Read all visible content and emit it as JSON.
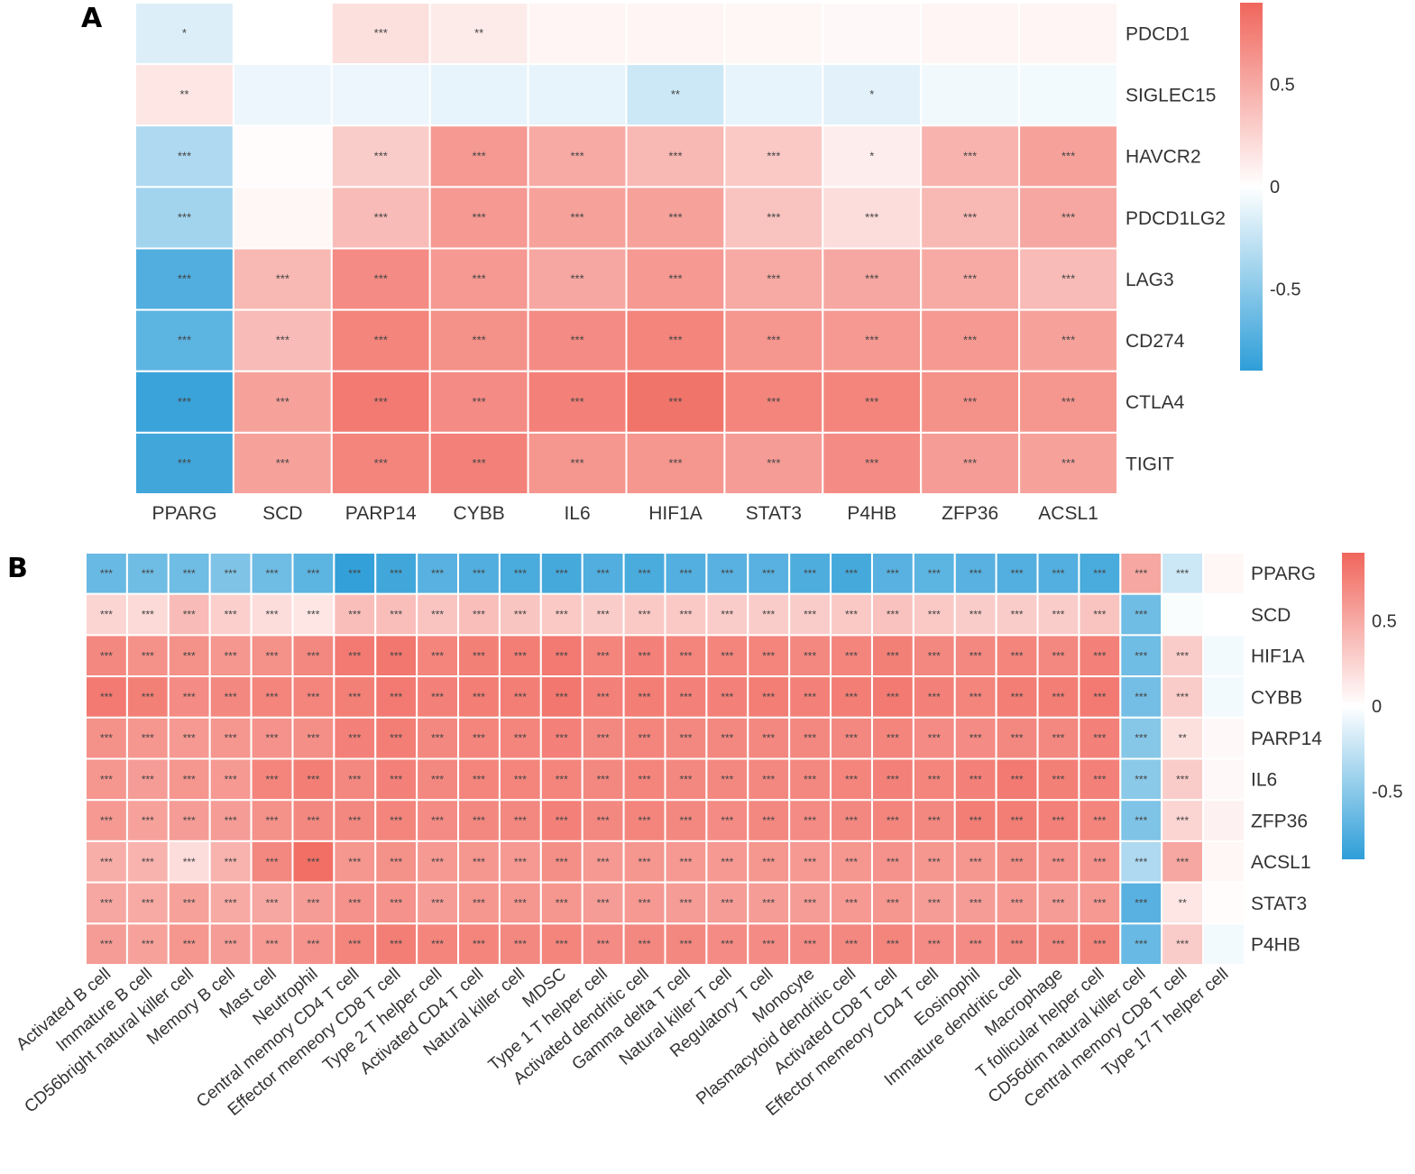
{
  "chart_data": [
    {
      "panel": "A",
      "type": "heatmap",
      "rows": [
        "PDCD1",
        "SIGLEC15",
        "HAVCR2",
        "PDCD1LG2",
        "LAG3",
        "CD274",
        "CTLA4",
        "TIGIT"
      ],
      "columns": [
        "PPARG",
        "SCD",
        "PARP14",
        "CYBB",
        "IL6",
        "HIF1A",
        "STAT3",
        "P4HB",
        "ZFP36",
        "ACSL1"
      ],
      "values": [
        [
          -0.15,
          0.0,
          0.18,
          0.12,
          0.06,
          0.06,
          0.05,
          0.04,
          0.06,
          0.06
        ],
        [
          0.15,
          -0.08,
          -0.08,
          -0.1,
          -0.1,
          -0.22,
          -0.1,
          -0.12,
          -0.06,
          -0.05
        ],
        [
          -0.35,
          0.02,
          0.3,
          0.6,
          0.5,
          0.42,
          0.32,
          0.1,
          0.45,
          0.55
        ],
        [
          -0.4,
          0.05,
          0.4,
          0.6,
          0.55,
          0.55,
          0.35,
          0.2,
          0.42,
          0.52
        ],
        [
          -0.75,
          0.42,
          0.68,
          0.6,
          0.52,
          0.6,
          0.5,
          0.52,
          0.5,
          0.4
        ],
        [
          -0.7,
          0.4,
          0.72,
          0.65,
          0.68,
          0.72,
          0.62,
          0.6,
          0.6,
          0.55
        ],
        [
          -0.85,
          0.55,
          0.78,
          0.68,
          0.74,
          0.82,
          0.72,
          0.72,
          0.65,
          0.62
        ],
        [
          -0.82,
          0.55,
          0.72,
          0.74,
          0.62,
          0.62,
          0.58,
          0.68,
          0.58,
          0.55
        ]
      ],
      "significance": [
        [
          "*",
          "",
          "***",
          "**",
          "",
          "",
          "",
          "",
          "",
          ""
        ],
        [
          "**",
          "",
          "",
          "",
          "",
          "**",
          "",
          "*",
          "",
          ""
        ],
        [
          "***",
          "",
          "***",
          "***",
          "***",
          "***",
          "***",
          "*",
          "***",
          "***"
        ],
        [
          "***",
          "",
          "***",
          "***",
          "***",
          "***",
          "***",
          "***",
          "***",
          "***"
        ],
        [
          "***",
          "***",
          "***",
          "***",
          "***",
          "***",
          "***",
          "***",
          "***",
          "***"
        ],
        [
          "***",
          "***",
          "***",
          "***",
          "***",
          "***",
          "***",
          "***",
          "***",
          "***"
        ],
        [
          "***",
          "***",
          "***",
          "***",
          "***",
          "***",
          "***",
          "***",
          "***",
          "***"
        ],
        [
          "***",
          "***",
          "***",
          "***",
          "***",
          "***",
          "***",
          "***",
          "***",
          "***"
        ]
      ],
      "colorbar": {
        "ticks": [
          0.5,
          0,
          -0.5
        ],
        "tick_labels": [
          "0.5",
          "0",
          "-0.5"
        ],
        "range": [
          -0.9,
          0.9
        ],
        "low_color": "#2e9ed8",
        "mid_color": "#ffffff",
        "high_color": "#f0665c"
      }
    },
    {
      "panel": "B",
      "type": "heatmap",
      "rows": [
        "PPARG",
        "SCD",
        "HIF1A",
        "CYBB",
        "PARP14",
        "IL6",
        "ZFP36",
        "ACSL1",
        "STAT3",
        "P4HB"
      ],
      "columns": [
        "Activated B cell",
        "Immature  B cell",
        "CD56bright natural killer cell",
        "Memory B cell",
        "Mast cell",
        "Neutrophil",
        "Central memory CD4 T cell",
        "Effector memeory CD8 T cell",
        "Type 2 T helper cell",
        "Activated CD4 T cell",
        "Natural killer cell",
        "MDSC",
        "Type 1 T helper cell",
        "Activated dendritic cell",
        "Gamma delta T cell",
        "Natural killer T cell",
        "Regulatory T cell",
        "Monocyte",
        "Plasmacytoid dendritic cell",
        "Activated CD8 T cell",
        "Effector memeory CD4 T cell",
        "Eosinophil",
        "Immature dendritic cell",
        "Macrophage",
        "T follicular helper cell",
        "CD56dim natural killer cell",
        "Central memory CD8 T cell",
        "Type 17 T helper cell"
      ],
      "values": [
        [
          -0.65,
          -0.62,
          -0.62,
          -0.55,
          -0.62,
          -0.7,
          -0.88,
          -0.82,
          -0.72,
          -0.75,
          -0.78,
          -0.8,
          -0.75,
          -0.78,
          -0.74,
          -0.72,
          -0.72,
          -0.76,
          -0.8,
          -0.72,
          -0.7,
          -0.72,
          -0.74,
          -0.74,
          -0.78,
          0.52,
          -0.22,
          0.05
        ],
        [
          0.25,
          0.22,
          0.4,
          0.28,
          0.2,
          0.15,
          0.38,
          0.38,
          0.35,
          0.38,
          0.34,
          0.32,
          0.3,
          0.32,
          0.32,
          0.3,
          0.3,
          0.3,
          0.32,
          0.36,
          0.32,
          0.3,
          0.3,
          0.3,
          0.35,
          -0.62,
          -0.02,
          0.0
        ],
        [
          0.7,
          0.65,
          0.65,
          0.62,
          0.65,
          0.7,
          0.78,
          0.8,
          0.72,
          0.75,
          0.76,
          0.78,
          0.72,
          0.74,
          0.72,
          0.72,
          0.72,
          0.7,
          0.72,
          0.75,
          0.7,
          0.7,
          0.72,
          0.7,
          0.74,
          -0.62,
          0.3,
          -0.05
        ],
        [
          0.78,
          0.75,
          0.68,
          0.7,
          0.72,
          0.72,
          0.75,
          0.78,
          0.74,
          0.76,
          0.76,
          0.8,
          0.74,
          0.76,
          0.74,
          0.74,
          0.76,
          0.74,
          0.76,
          0.78,
          0.74,
          0.72,
          0.76,
          0.76,
          0.78,
          -0.6,
          0.3,
          -0.05
        ],
        [
          0.65,
          0.62,
          0.6,
          0.62,
          0.64,
          0.66,
          0.74,
          0.76,
          0.7,
          0.72,
          0.72,
          0.74,
          0.7,
          0.72,
          0.7,
          0.7,
          0.7,
          0.7,
          0.7,
          0.72,
          0.68,
          0.68,
          0.7,
          0.7,
          0.74,
          -0.52,
          0.18,
          0.04
        ],
        [
          0.62,
          0.58,
          0.62,
          0.6,
          0.72,
          0.76,
          0.7,
          0.74,
          0.7,
          0.72,
          0.72,
          0.72,
          0.7,
          0.72,
          0.7,
          0.7,
          0.7,
          0.7,
          0.72,
          0.74,
          0.72,
          0.74,
          0.78,
          0.75,
          0.74,
          -0.5,
          0.3,
          0.04
        ],
        [
          0.6,
          0.55,
          0.58,
          0.58,
          0.65,
          0.7,
          0.7,
          0.72,
          0.68,
          0.7,
          0.7,
          0.74,
          0.7,
          0.72,
          0.7,
          0.68,
          0.7,
          0.68,
          0.7,
          0.72,
          0.7,
          0.76,
          0.76,
          0.74,
          0.72,
          -0.55,
          0.25,
          0.08
        ],
        [
          0.48,
          0.45,
          0.2,
          0.45,
          0.7,
          0.85,
          0.62,
          0.65,
          0.6,
          0.62,
          0.6,
          0.66,
          0.6,
          0.62,
          0.6,
          0.6,
          0.62,
          0.6,
          0.62,
          0.64,
          0.62,
          0.62,
          0.66,
          0.64,
          0.64,
          -0.35,
          0.52,
          0.05
        ],
        [
          0.52,
          0.5,
          0.55,
          0.5,
          0.52,
          0.58,
          0.64,
          0.64,
          0.58,
          0.62,
          0.62,
          0.62,
          0.58,
          0.6,
          0.58,
          0.58,
          0.58,
          0.58,
          0.6,
          0.62,
          0.58,
          0.58,
          0.6,
          0.58,
          0.6,
          -0.72,
          0.15,
          0.02
        ],
        [
          0.58,
          0.55,
          0.62,
          0.58,
          0.6,
          0.64,
          0.72,
          0.76,
          0.72,
          0.72,
          0.7,
          0.72,
          0.68,
          0.7,
          0.7,
          0.68,
          0.68,
          0.68,
          0.7,
          0.72,
          0.68,
          0.68,
          0.7,
          0.7,
          0.72,
          -0.65,
          0.3,
          -0.05
        ]
      ],
      "significance": [
        [
          "***",
          "***",
          "***",
          "***",
          "***",
          "***",
          "***",
          "***",
          "***",
          "***",
          "***",
          "***",
          "***",
          "***",
          "***",
          "***",
          "***",
          "***",
          "***",
          "***",
          "***",
          "***",
          "***",
          "***",
          "***",
          "***",
          "***",
          ""
        ],
        [
          "***",
          "***",
          "***",
          "***",
          "***",
          "***",
          "***",
          "***",
          "***",
          "***",
          "***",
          "***",
          "***",
          "***",
          "***",
          "***",
          "***",
          "***",
          "***",
          "***",
          "***",
          "***",
          "***",
          "***",
          "***",
          "***",
          "",
          ""
        ],
        [
          "***",
          "***",
          "***",
          "***",
          "***",
          "***",
          "***",
          "***",
          "***",
          "***",
          "***",
          "***",
          "***",
          "***",
          "***",
          "***",
          "***",
          "***",
          "***",
          "***",
          "***",
          "***",
          "***",
          "***",
          "***",
          "***",
          "***",
          ""
        ],
        [
          "***",
          "***",
          "***",
          "***",
          "***",
          "***",
          "***",
          "***",
          "***",
          "***",
          "***",
          "***",
          "***",
          "***",
          "***",
          "***",
          "***",
          "***",
          "***",
          "***",
          "***",
          "***",
          "***",
          "***",
          "***",
          "***",
          "***",
          ""
        ],
        [
          "***",
          "***",
          "***",
          "***",
          "***",
          "***",
          "***",
          "***",
          "***",
          "***",
          "***",
          "***",
          "***",
          "***",
          "***",
          "***",
          "***",
          "***",
          "***",
          "***",
          "***",
          "***",
          "***",
          "***",
          "***",
          "***",
          "**",
          ""
        ],
        [
          "***",
          "***",
          "***",
          "***",
          "***",
          "***",
          "***",
          "***",
          "***",
          "***",
          "***",
          "***",
          "***",
          "***",
          "***",
          "***",
          "***",
          "***",
          "***",
          "***",
          "***",
          "***",
          "***",
          "***",
          "***",
          "***",
          "***",
          ""
        ],
        [
          "***",
          "***",
          "***",
          "***",
          "***",
          "***",
          "***",
          "***",
          "***",
          "***",
          "***",
          "***",
          "***",
          "***",
          "***",
          "***",
          "***",
          "***",
          "***",
          "***",
          "***",
          "***",
          "***",
          "***",
          "***",
          "***",
          "***",
          ""
        ],
        [
          "***",
          "***",
          "***",
          "***",
          "***",
          "***",
          "***",
          "***",
          "***",
          "***",
          "***",
          "***",
          "***",
          "***",
          "***",
          "***",
          "***",
          "***",
          "***",
          "***",
          "***",
          "***",
          "***",
          "***",
          "***",
          "***",
          "***",
          ""
        ],
        [
          "***",
          "***",
          "***",
          "***",
          "***",
          "***",
          "***",
          "***",
          "***",
          "***",
          "***",
          "***",
          "***",
          "***",
          "***",
          "***",
          "***",
          "***",
          "***",
          "***",
          "***",
          "***",
          "***",
          "***",
          "***",
          "***",
          "**",
          ""
        ],
        [
          "***",
          "***",
          "***",
          "***",
          "***",
          "***",
          "***",
          "***",
          "***",
          "***",
          "***",
          "***",
          "***",
          "***",
          "***",
          "***",
          "***",
          "***",
          "***",
          "***",
          "***",
          "***",
          "***",
          "***",
          "***",
          "***",
          "***",
          ""
        ]
      ],
      "colorbar": {
        "ticks": [
          0.5,
          0,
          -0.5
        ],
        "tick_labels": [
          "0.5",
          "0",
          "-0.5"
        ],
        "range": [
          -0.9,
          0.9
        ],
        "low_color": "#2e9ed8",
        "mid_color": "#ffffff",
        "high_color": "#f0665c"
      }
    }
  ]
}
